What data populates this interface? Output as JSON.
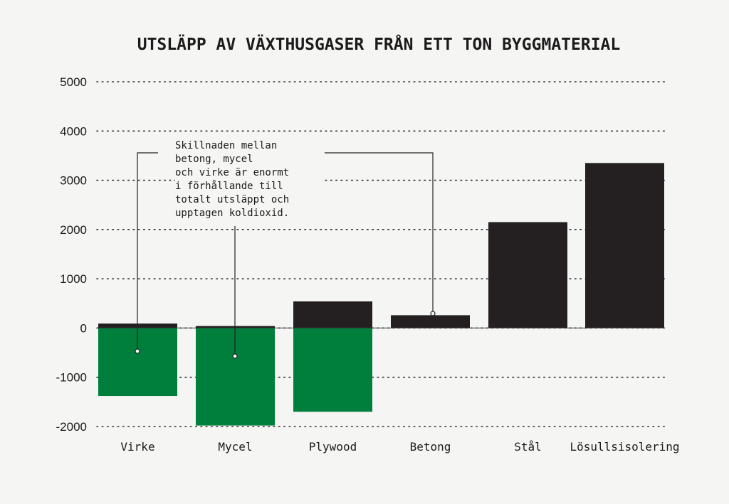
{
  "chart_data": {
    "type": "bar",
    "title": "UTSLÄPP AV VÄXTHUSGASER FRÅN ETT TON BYGGMATERIAL",
    "categories": [
      "Virke",
      "Mycel",
      "Plywood",
      "Betong",
      "Stål",
      "Lösullsisolering"
    ],
    "series": [
      {
        "values": [
          90,
          40,
          540,
          260,
          2150,
          3350
        ]
      },
      {
        "values": [
          -1380,
          -1980,
          -1700,
          0,
          0,
          0
        ]
      }
    ],
    "colors": {
      "positive": "#242021",
      "negative": "#007e3c"
    },
    "ylim": [
      -2000,
      5000
    ],
    "yticks": [
      "5000",
      "4000",
      "3000",
      "2000",
      "1000",
      "0",
      "-1000",
      "-2000"
    ],
    "grid": "dotted horizontal",
    "annotation": "Skillnaden mellan\nbetong, mycel\noch virke är enormt\ni förhållande till\ntotalt utsläppt och\nupptagen koldioxid."
  }
}
